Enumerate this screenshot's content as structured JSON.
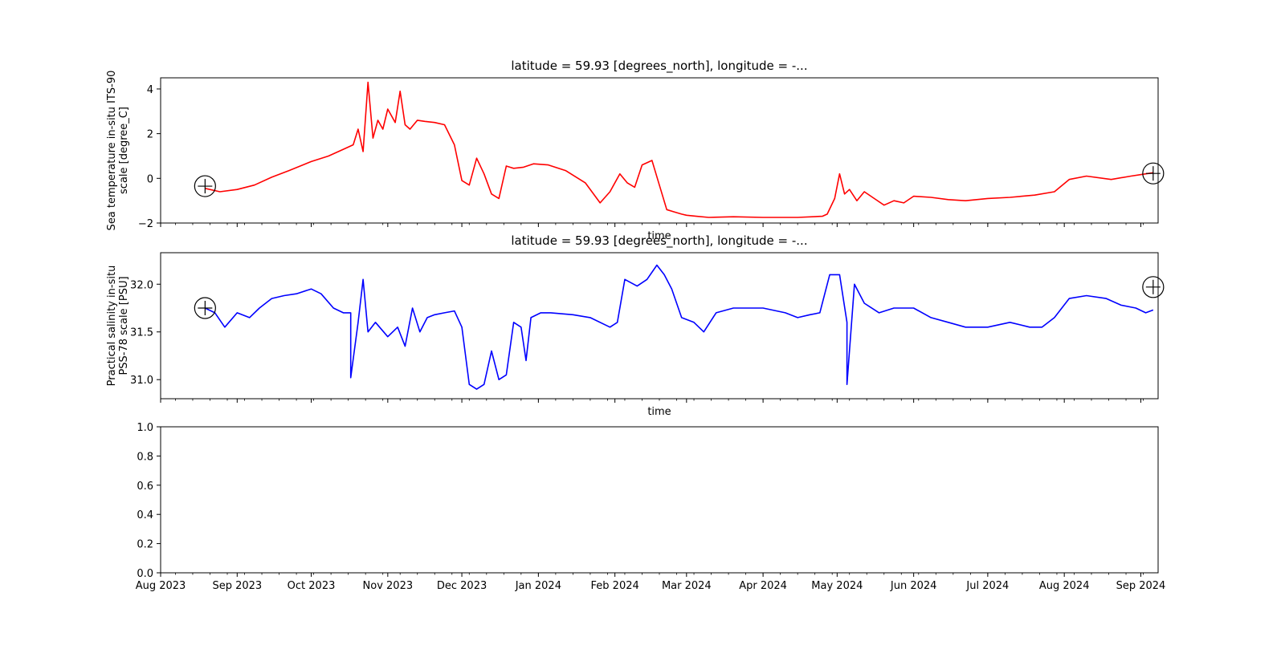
{
  "chart_data": [
    {
      "type": "line",
      "title": "latitude = 59.93 [degrees_north], longitude = -...",
      "xlabel": "time",
      "ylabel": [
        "Sea temperature in-situ ITS-90",
        "scale [degree_C]"
      ],
      "ylim": [
        -2,
        4.5
      ],
      "yticks": [
        -2,
        0,
        2,
        4
      ],
      "xlim": [
        "2023-08-01",
        "2024-09-08"
      ],
      "series": [
        {
          "color": "#ff0000",
          "x": [
            "2023-08-19",
            "2023-08-25",
            "2023-09-01",
            "2023-09-08",
            "2023-09-15",
            "2023-09-22",
            "2023-10-01",
            "2023-10-08",
            "2023-10-14",
            "2023-10-18",
            "2023-10-20",
            "2023-10-22",
            "2023-10-24",
            "2023-10-26",
            "2023-10-28",
            "2023-10-30",
            "2023-11-01",
            "2023-11-04",
            "2023-11-06",
            "2023-11-08",
            "2023-11-10",
            "2023-11-13",
            "2023-11-16",
            "2023-11-20",
            "2023-11-24",
            "2023-11-28",
            "2023-12-01",
            "2023-12-04",
            "2023-12-07",
            "2023-12-10",
            "2023-12-13",
            "2023-12-16",
            "2023-12-19",
            "2023-12-22",
            "2023-12-26",
            "2023-12-30",
            "2024-01-05",
            "2024-01-12",
            "2024-01-20",
            "2024-01-26",
            "2024-01-30",
            "2024-02-03",
            "2024-02-06",
            "2024-02-09",
            "2024-02-12",
            "2024-02-16",
            "2024-02-19",
            "2024-02-22",
            "2024-02-25",
            "2024-02-28",
            "2024-03-01",
            "2024-03-05",
            "2024-03-10",
            "2024-03-20",
            "2024-04-01",
            "2024-04-15",
            "2024-04-25",
            "2024-04-27",
            "2024-04-30",
            "2024-05-02",
            "2024-05-04",
            "2024-05-06",
            "2024-05-09",
            "2024-05-12",
            "2024-05-16",
            "2024-05-20",
            "2024-05-24",
            "2024-05-28",
            "2024-06-01",
            "2024-06-08",
            "2024-06-15",
            "2024-06-22",
            "2024-07-01",
            "2024-07-10",
            "2024-07-20",
            "2024-07-28",
            "2024-08-03",
            "2024-08-10",
            "2024-08-20",
            "2024-08-28",
            "2024-09-03",
            "2024-09-06"
          ],
          "y": [
            -0.45,
            -0.6,
            -0.5,
            -0.3,
            0.05,
            0.35,
            0.75,
            1.0,
            1.3,
            1.5,
            2.2,
            1.2,
            4.3,
            1.8,
            2.6,
            2.2,
            3.1,
            2.5,
            3.9,
            2.4,
            2.2,
            2.6,
            2.55,
            2.5,
            2.4,
            1.5,
            -0.1,
            -0.3,
            0.9,
            0.2,
            -0.7,
            -0.9,
            0.55,
            0.45,
            0.5,
            0.65,
            0.6,
            0.35,
            -0.2,
            -1.1,
            -0.6,
            0.2,
            -0.2,
            -0.4,
            0.6,
            0.8,
            -0.3,
            -1.4,
            -1.5,
            -1.6,
            -1.65,
            -1.7,
            -1.75,
            -1.72,
            -1.75,
            -1.75,
            -1.7,
            -1.6,
            -0.9,
            0.2,
            -0.7,
            -0.5,
            -1.0,
            -0.6,
            -0.9,
            -1.2,
            -1.0,
            -1.1,
            -0.8,
            -0.85,
            -0.95,
            -1.0,
            -0.9,
            -0.85,
            -0.75,
            -0.6,
            -0.05,
            0.1,
            -0.05,
            0.1,
            0.2,
            0.25
          ]
        }
      ]
    },
    {
      "type": "line",
      "title": "latitude = 59.93 [degrees_north], longitude = -...",
      "xlabel": "time",
      "ylabel": [
        "Practical salinity in-situ",
        "PSS-78 scale [PSU]"
      ],
      "ylim": [
        30.8,
        32.33
      ],
      "yticks": [
        31.0,
        31.5,
        32.0
      ],
      "xlim": [
        "2023-08-01",
        "2024-09-08"
      ],
      "series": [
        {
          "color": "#0000ff",
          "x": [
            "2023-08-19",
            "2023-08-23",
            "2023-08-27",
            "2023-09-01",
            "2023-09-06",
            "2023-09-10",
            "2023-09-15",
            "2023-09-20",
            "2023-09-25",
            "2023-10-01",
            "2023-10-05",
            "2023-10-10",
            "2023-10-14",
            "2023-10-17",
            "2023-10-17",
            "2023-10-20",
            "2023-10-22",
            "2023-10-24",
            "2023-10-27",
            "2023-11-01",
            "2023-11-05",
            "2023-11-08",
            "2023-11-11",
            "2023-11-14",
            "2023-11-17",
            "2023-11-20",
            "2023-11-24",
            "2023-11-28",
            "2023-12-01",
            "2023-12-04",
            "2023-12-07",
            "2023-12-10",
            "2023-12-13",
            "2023-12-16",
            "2023-12-19",
            "2023-12-22",
            "2023-12-25",
            "2023-12-27",
            "2023-12-29",
            "2024-01-02",
            "2024-01-06",
            "2024-01-15",
            "2024-01-22",
            "2024-01-30",
            "2024-02-02",
            "2024-02-05",
            "2024-02-10",
            "2024-02-14",
            "2024-02-18",
            "2024-02-21",
            "2024-02-24",
            "2024-02-28",
            "2024-03-04",
            "2024-03-08",
            "2024-03-13",
            "2024-03-20",
            "2024-04-01",
            "2024-04-10",
            "2024-04-15",
            "2024-04-20",
            "2024-04-24",
            "2024-04-28",
            "2024-05-02",
            "2024-05-05",
            "2024-05-05",
            "2024-05-08",
            "2024-05-12",
            "2024-05-18",
            "2024-05-24",
            "2024-06-01",
            "2024-06-08",
            "2024-06-15",
            "2024-06-22",
            "2024-07-01",
            "2024-07-10",
            "2024-07-18",
            "2024-07-23",
            "2024-07-28",
            "2024-08-03",
            "2024-08-10",
            "2024-08-18",
            "2024-08-24",
            "2024-08-30",
            "2024-09-03",
            "2024-09-06"
          ],
          "y": [
            31.75,
            31.7,
            31.55,
            31.7,
            31.65,
            31.75,
            31.85,
            31.88,
            31.9,
            31.95,
            31.9,
            31.75,
            31.7,
            31.7,
            31.02,
            31.6,
            32.05,
            31.5,
            31.6,
            31.45,
            31.55,
            31.35,
            31.75,
            31.5,
            31.65,
            31.68,
            31.7,
            31.72,
            31.55,
            30.95,
            30.9,
            30.95,
            31.3,
            31.0,
            31.05,
            31.6,
            31.55,
            31.2,
            31.65,
            31.7,
            31.7,
            31.68,
            31.65,
            31.55,
            31.6,
            32.05,
            31.98,
            32.05,
            32.2,
            32.1,
            31.95,
            31.65,
            31.6,
            31.5,
            31.7,
            31.75,
            31.75,
            31.7,
            31.65,
            31.68,
            31.7,
            32.1,
            32.1,
            31.6,
            30.95,
            32.0,
            31.8,
            31.7,
            31.75,
            31.75,
            31.65,
            31.6,
            31.55,
            31.55,
            31.6,
            31.55,
            31.55,
            31.65,
            31.85,
            31.88,
            31.85,
            31.78,
            31.75,
            31.7,
            31.73
          ]
        }
      ]
    },
    {
      "type": "line",
      "title": "",
      "xlabel": "",
      "ylabel": [],
      "ylim": [
        0,
        1
      ],
      "yticks": [
        0.0,
        0.2,
        0.4,
        0.6,
        0.8,
        1.0
      ],
      "xlim": [
        "2023-08-01",
        "2024-09-08"
      ],
      "xtick_labels": [
        "Aug 2023",
        "Sep 2023",
        "Oct 2023",
        "Nov 2023",
        "Dec 2023",
        "Jan 2024",
        "Feb 2024",
        "Mar 2024",
        "Apr 2024",
        "May 2024",
        "Jun 2024",
        "Jul 2024",
        "Aug 2024",
        "Sep 2024"
      ],
      "series": []
    }
  ],
  "markers": [
    {
      "panel": 0,
      "x": "2023-08-19",
      "y": -0.35
    },
    {
      "panel": 0,
      "x": "2024-09-06",
      "y": 0.22
    },
    {
      "panel": 1,
      "x": "2023-08-19",
      "y": 31.75
    },
    {
      "panel": 1,
      "x": "2024-09-06",
      "y": 31.97
    }
  ]
}
